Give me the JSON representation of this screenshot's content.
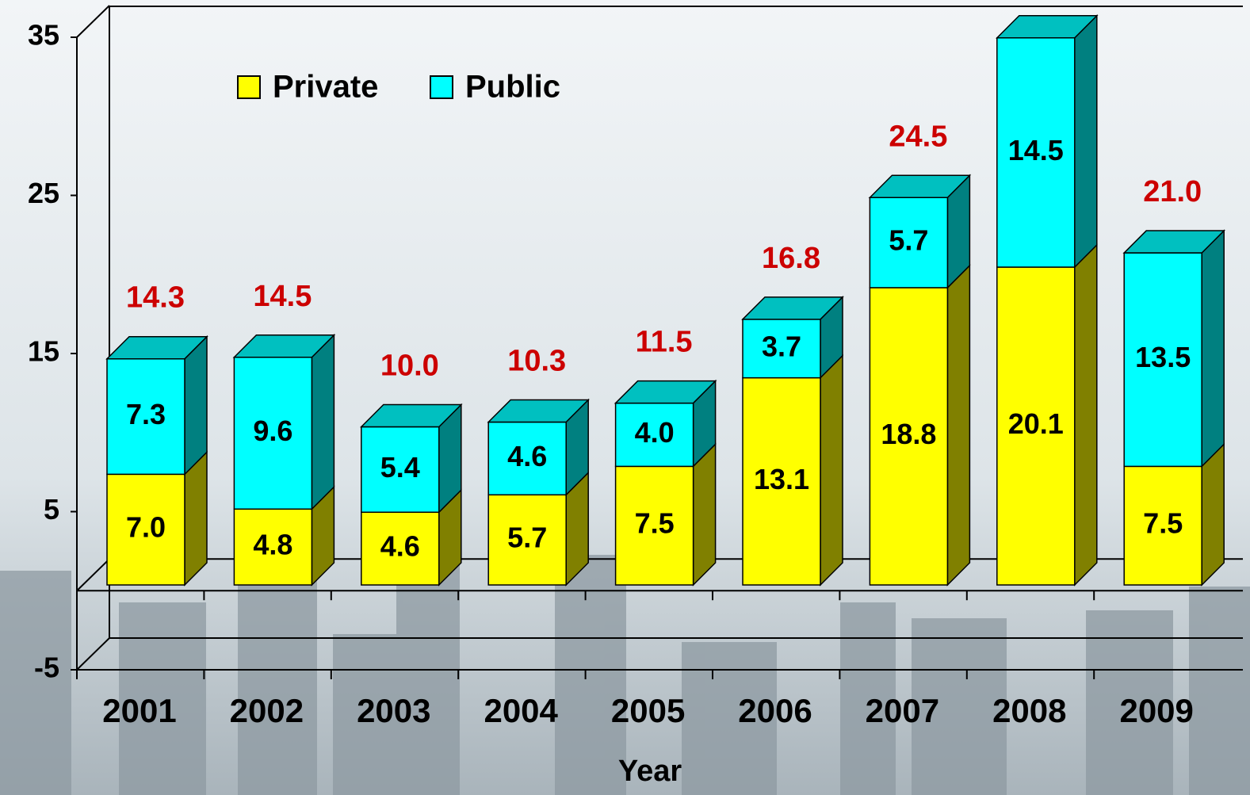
{
  "chart_data": {
    "type": "bar3d_stacked",
    "categories": [
      "2001",
      "2002",
      "2003",
      "2004",
      "2005",
      "2006",
      "2007",
      "2008",
      "2009"
    ],
    "series": [
      {
        "name": "Private",
        "color": "#ffff00",
        "side_color": "#808000",
        "top_color": "#c8c800",
        "values": [
          7.0,
          4.8,
          4.6,
          5.7,
          7.5,
          13.1,
          18.8,
          20.1,
          7.5
        ],
        "value_labels": [
          "7.0",
          "4.8",
          "4.6",
          "5.7",
          "7.5",
          "13.1",
          "18.8",
          "20.1",
          "7.5"
        ]
      },
      {
        "name": "Public",
        "color": "#00ffff",
        "side_color": "#008080",
        "top_color": "#00c0c0",
        "values": [
          7.3,
          9.6,
          5.4,
          4.6,
          4.0,
          3.7,
          5.7,
          14.5,
          13.5
        ],
        "value_labels": [
          "7.3",
          "9.6",
          "5.4",
          "4.6",
          "4.0",
          "3.7",
          "5.7",
          "14.5",
          "13.5"
        ]
      }
    ],
    "total_labels": [
      "14.3",
      "14.5",
      "10.0",
      "10.3",
      "11.5",
      "16.8",
      "24.5",
      null,
      "21.0"
    ],
    "total_color": "#cc0000",
    "x_label": "Year",
    "ylim": [
      -5,
      35
    ],
    "yticks": [
      -5,
      5,
      15,
      25,
      35
    ],
    "legend": "top-left"
  }
}
